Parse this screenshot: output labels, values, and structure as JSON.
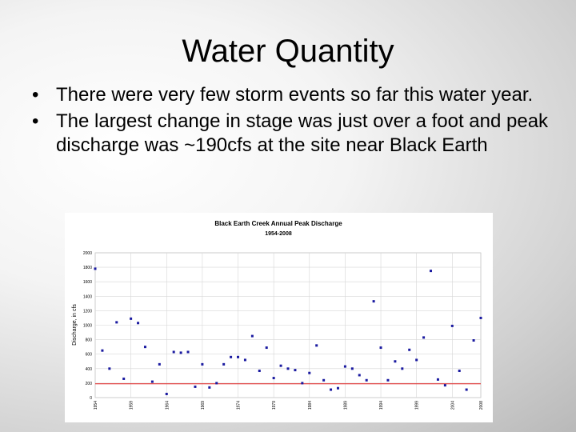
{
  "slide": {
    "title": "Water Quantity",
    "bullets": [
      "There were very few storm events so far this water year.",
      "The largest change in stage was just over a foot and peak discharge was ~190cfs at the site near Black Earth"
    ]
  },
  "chart_data": {
    "type": "scatter",
    "title": "Black Earth Creek Annual Peak Discharge",
    "subtitle": "1954-2008",
    "ylabel": "Discharge, in cfs",
    "xlabel": "",
    "xlim": [
      1954,
      2008
    ],
    "ylim": [
      0,
      2000
    ],
    "yticks": [
      0,
      200,
      400,
      600,
      800,
      1000,
      1200,
      1400,
      1600,
      1800,
      2000
    ],
    "xticks": [
      1954,
      1959,
      1964,
      1969,
      1974,
      1979,
      1984,
      1989,
      1994,
      1999,
      2004,
      2008
    ],
    "grid": true,
    "reference_line": {
      "y": 190,
      "color": "#e02020"
    },
    "marker_color": "#1a1aa0",
    "x": [
      1954,
      1955,
      1956,
      1957,
      1958,
      1959,
      1960,
      1961,
      1962,
      1963,
      1964,
      1965,
      1966,
      1967,
      1968,
      1969,
      1970,
      1971,
      1972,
      1973,
      1974,
      1975,
      1976,
      1977,
      1978,
      1979,
      1980,
      1981,
      1982,
      1983,
      1984,
      1985,
      1986,
      1987,
      1988,
      1989,
      1990,
      1991,
      1992,
      1993,
      1994,
      1995,
      1996,
      1997,
      1998,
      1999,
      2000,
      2001,
      2002,
      2003,
      2004,
      2005,
      2006,
      2007,
      2008
    ],
    "y": [
      1780,
      650,
      400,
      1040,
      260,
      1090,
      1030,
      700,
      220,
      460,
      50,
      630,
      620,
      630,
      150,
      460,
      140,
      200,
      460,
      560,
      560,
      520,
      850,
      370,
      690,
      270,
      440,
      400,
      380,
      200,
      340,
      720,
      240,
      110,
      130,
      430,
      400,
      310,
      240,
      1330,
      690,
      240,
      500,
      400,
      660,
      520,
      830,
      1750,
      250,
      170,
      990,
      370,
      110,
      790,
      1100
    ]
  }
}
